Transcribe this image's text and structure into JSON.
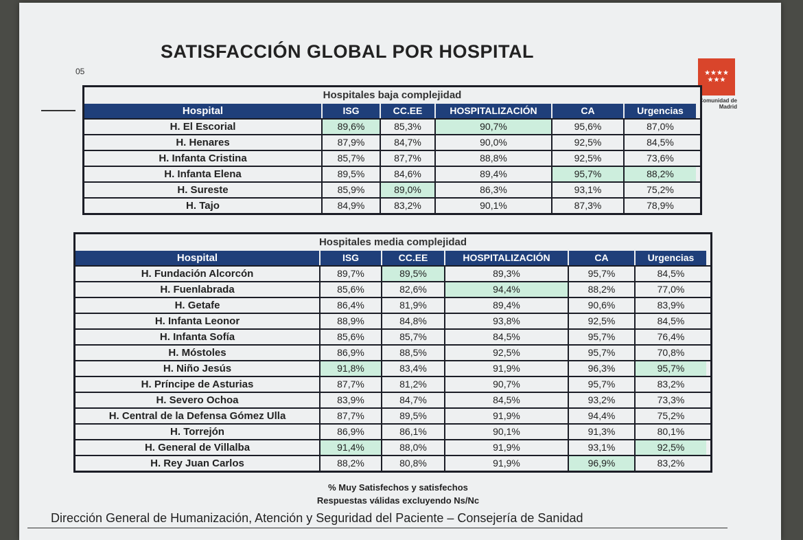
{
  "slide": {
    "number": "05",
    "title": "SATISFACCIÓN GLOBAL POR HOSPITAL",
    "logo": {
      "stars": "★★★★ ★★★",
      "text": "Comunidad de Madrid",
      "color": "#d9452b"
    },
    "header_color": "#1f3f7a",
    "highlight_color": "#cdeedd"
  },
  "columns": [
    "Hospital",
    "ISG",
    "CC.EE",
    "HOSPITALIZACIÓN",
    "CA",
    "Urgencias"
  ],
  "tables": [
    {
      "section": "Hospitales baja complejidad",
      "rows": [
        {
          "name": "H. El Escorial",
          "values": [
            "89,6%",
            "85,3%",
            "90,7%",
            "95,6%",
            "87,0%"
          ],
          "highlight": [
            0,
            2
          ]
        },
        {
          "name": "H. Henares",
          "values": [
            "87,9%",
            "84,7%",
            "90,0%",
            "92,5%",
            "84,5%"
          ],
          "highlight": []
        },
        {
          "name": "H. Infanta Cristina",
          "values": [
            "85,7%",
            "87,7%",
            "88,8%",
            "92,5%",
            "73,6%"
          ],
          "highlight": []
        },
        {
          "name": "H. Infanta Elena",
          "values": [
            "89,5%",
            "84,6%",
            "89,4%",
            "95,7%",
            "88,2%"
          ],
          "highlight": [
            3,
            4
          ]
        },
        {
          "name": "H. Sureste",
          "values": [
            "85,9%",
            "89,0%",
            "86,3%",
            "93,1%",
            "75,2%"
          ],
          "highlight": [
            1
          ]
        },
        {
          "name": "H. Tajo",
          "values": [
            "84,9%",
            "83,2%",
            "90,1%",
            "87,3%",
            "78,9%"
          ],
          "highlight": []
        }
      ]
    },
    {
      "section": "Hospitales media complejidad",
      "rows": [
        {
          "name": "H. Fundación Alcorcón",
          "values": [
            "89,7%",
            "89,5%",
            "89,3%",
            "95,7%",
            "84,5%"
          ],
          "highlight": [
            1
          ]
        },
        {
          "name": "H. Fuenlabrada",
          "values": [
            "85,6%",
            "82,6%",
            "94,4%",
            "88,2%",
            "77,0%"
          ],
          "highlight": [
            2
          ]
        },
        {
          "name": "H. Getafe",
          "values": [
            "86,4%",
            "81,9%",
            "89,4%",
            "90,6%",
            "83,9%"
          ],
          "highlight": []
        },
        {
          "name": "H. Infanta Leonor",
          "values": [
            "88,9%",
            "84,8%",
            "93,8%",
            "92,5%",
            "84,5%"
          ],
          "highlight": []
        },
        {
          "name": "H. Infanta Sofía",
          "values": [
            "85,6%",
            "85,7%",
            "84,5%",
            "95,7%",
            "76,4%"
          ],
          "highlight": []
        },
        {
          "name": "H. Móstoles",
          "values": [
            "86,9%",
            "88,5%",
            "92,5%",
            "95,7%",
            "70,8%"
          ],
          "highlight": []
        },
        {
          "name": "H. Niño Jesús",
          "values": [
            "91,8%",
            "83,4%",
            "91,9%",
            "96,3%",
            "95,7%"
          ],
          "highlight": [
            0,
            4
          ]
        },
        {
          "name": "H. Príncipe de Asturias",
          "values": [
            "87,7%",
            "81,2%",
            "90,7%",
            "95,7%",
            "83,2%"
          ],
          "highlight": []
        },
        {
          "name": "H. Severo Ochoa",
          "values": [
            "83,9%",
            "84,7%",
            "84,5%",
            "93,2%",
            "73,3%"
          ],
          "highlight": []
        },
        {
          "name": "H. Central de la Defensa Gómez Ulla",
          "values": [
            "87,7%",
            "89,5%",
            "91,9%",
            "94,4%",
            "75,2%"
          ],
          "highlight": []
        },
        {
          "name": "H. Torrejón",
          "values": [
            "86,9%",
            "86,1%",
            "90,1%",
            "91,3%",
            "80,1%"
          ],
          "highlight": []
        },
        {
          "name": "H. General de Villalba",
          "values": [
            "91,4%",
            "88,0%",
            "91,9%",
            "93,1%",
            "92,5%"
          ],
          "highlight": [
            0,
            4
          ]
        },
        {
          "name": "H. Rey Juan Carlos",
          "values": [
            "88,2%",
            "80,8%",
            "91,9%",
            "96,9%",
            "83,2%"
          ],
          "highlight": [
            3
          ]
        }
      ]
    }
  ],
  "footnotes": [
    "% Muy Satisfechos y satisfechos",
    "Respuestas válidas excluyendo Ns/Nc"
  ],
  "footer": "Dirección General de Humanización, Atención y Seguridad del Paciente – Consejería de Sanidad"
}
